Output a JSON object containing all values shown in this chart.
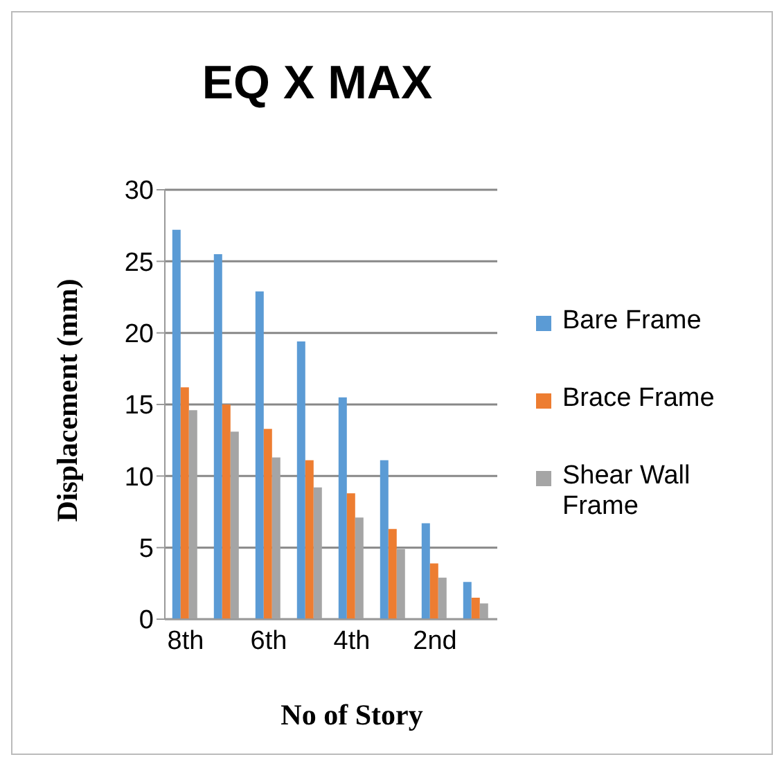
{
  "chart_data": {
    "type": "bar",
    "title": "EQ X MAX",
    "xlabel": "No of Story",
    "ylabel": "Displacement (mm)",
    "categories": [
      "8th",
      null,
      "6th",
      null,
      "4th",
      null,
      "2nd",
      null
    ],
    "series": [
      {
        "name": "Bare Frame",
        "color": "#5b9bd5",
        "values": [
          27.2,
          25.5,
          22.9,
          19.4,
          15.5,
          11.1,
          6.7,
          2.6
        ]
      },
      {
        "name": "Brace Frame",
        "color": "#ed7d31",
        "values": [
          16.2,
          15.0,
          13.3,
          11.1,
          8.8,
          6.3,
          3.9,
          1.5
        ]
      },
      {
        "name": "Shear Wall Frame",
        "color": "#a5a5a5",
        "values": [
          14.6,
          13.1,
          11.3,
          9.2,
          7.1,
          4.9,
          2.9,
          1.1
        ]
      }
    ],
    "ylim": [
      0,
      30
    ],
    "yticks": [
      0,
      5,
      10,
      15,
      20,
      25,
      30
    ],
    "grid": "y",
    "legend": "right"
  }
}
